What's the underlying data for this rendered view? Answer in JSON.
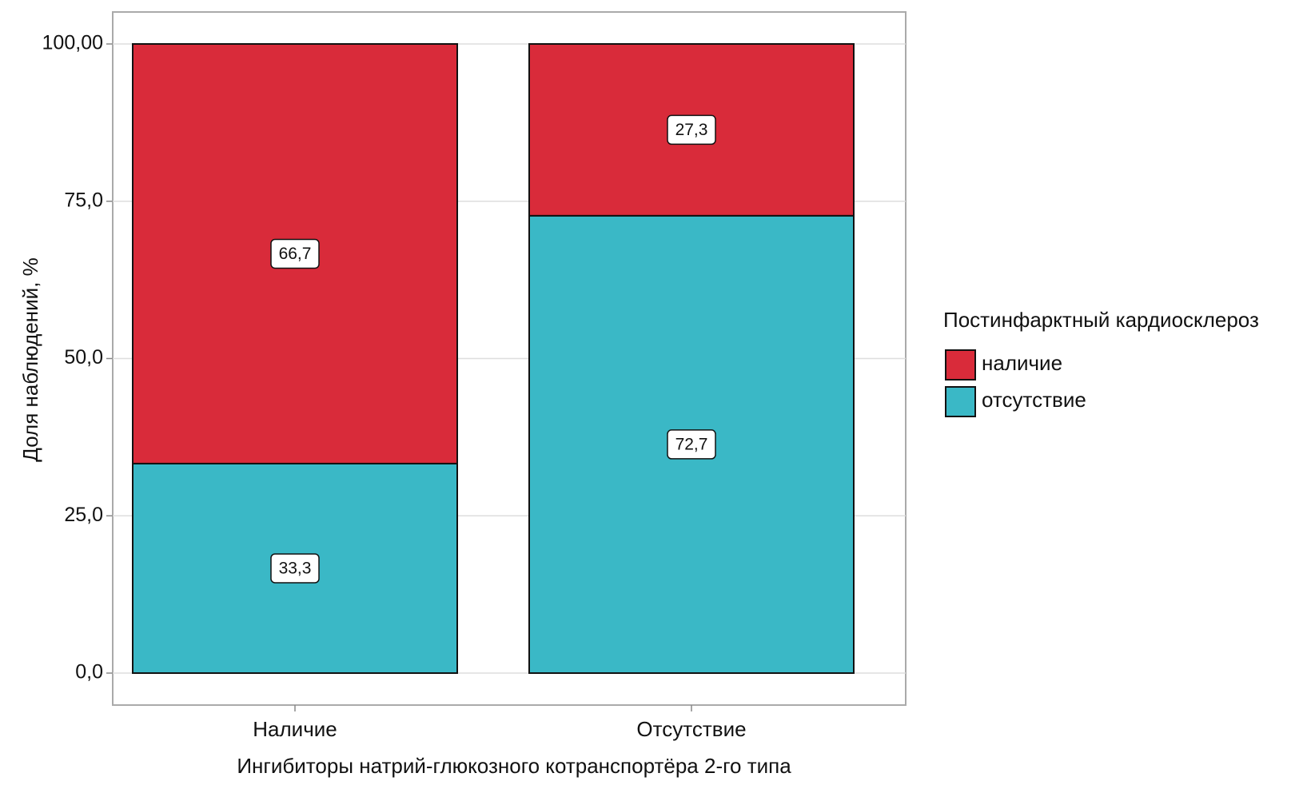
{
  "chart_data": {
    "type": "stacked_bar",
    "x_label": "Ингибиторы натрий-глюкозного котранспортёра 2-го типа",
    "y_label": "Доля наблюдений, %",
    "legend_title": "Постинфарктный кардиосклероз",
    "categories": [
      "Наличие",
      "Отсутствие"
    ],
    "series": [
      {
        "name": "наличие",
        "color": "#d92b3a",
        "values": [
          66.7,
          27.3
        ],
        "value_labels": [
          "66,7",
          "27,3"
        ]
      },
      {
        "name": "отсутствие",
        "color": "#3ab8c6",
        "values": [
          33.3,
          72.7
        ],
        "value_labels": [
          "33,3",
          "72,7"
        ]
      }
    ],
    "ylim": [
      0,
      100
    ],
    "yticks": [
      {
        "value": 0,
        "label": "0,0"
      },
      {
        "value": 25,
        "label": "25,0"
      },
      {
        "value": 50,
        "label": "50,0"
      },
      {
        "value": 75,
        "label": "75,0"
      },
      {
        "value": 100,
        "label": "100,00"
      }
    ],
    "grid": true,
    "legend": "right"
  }
}
